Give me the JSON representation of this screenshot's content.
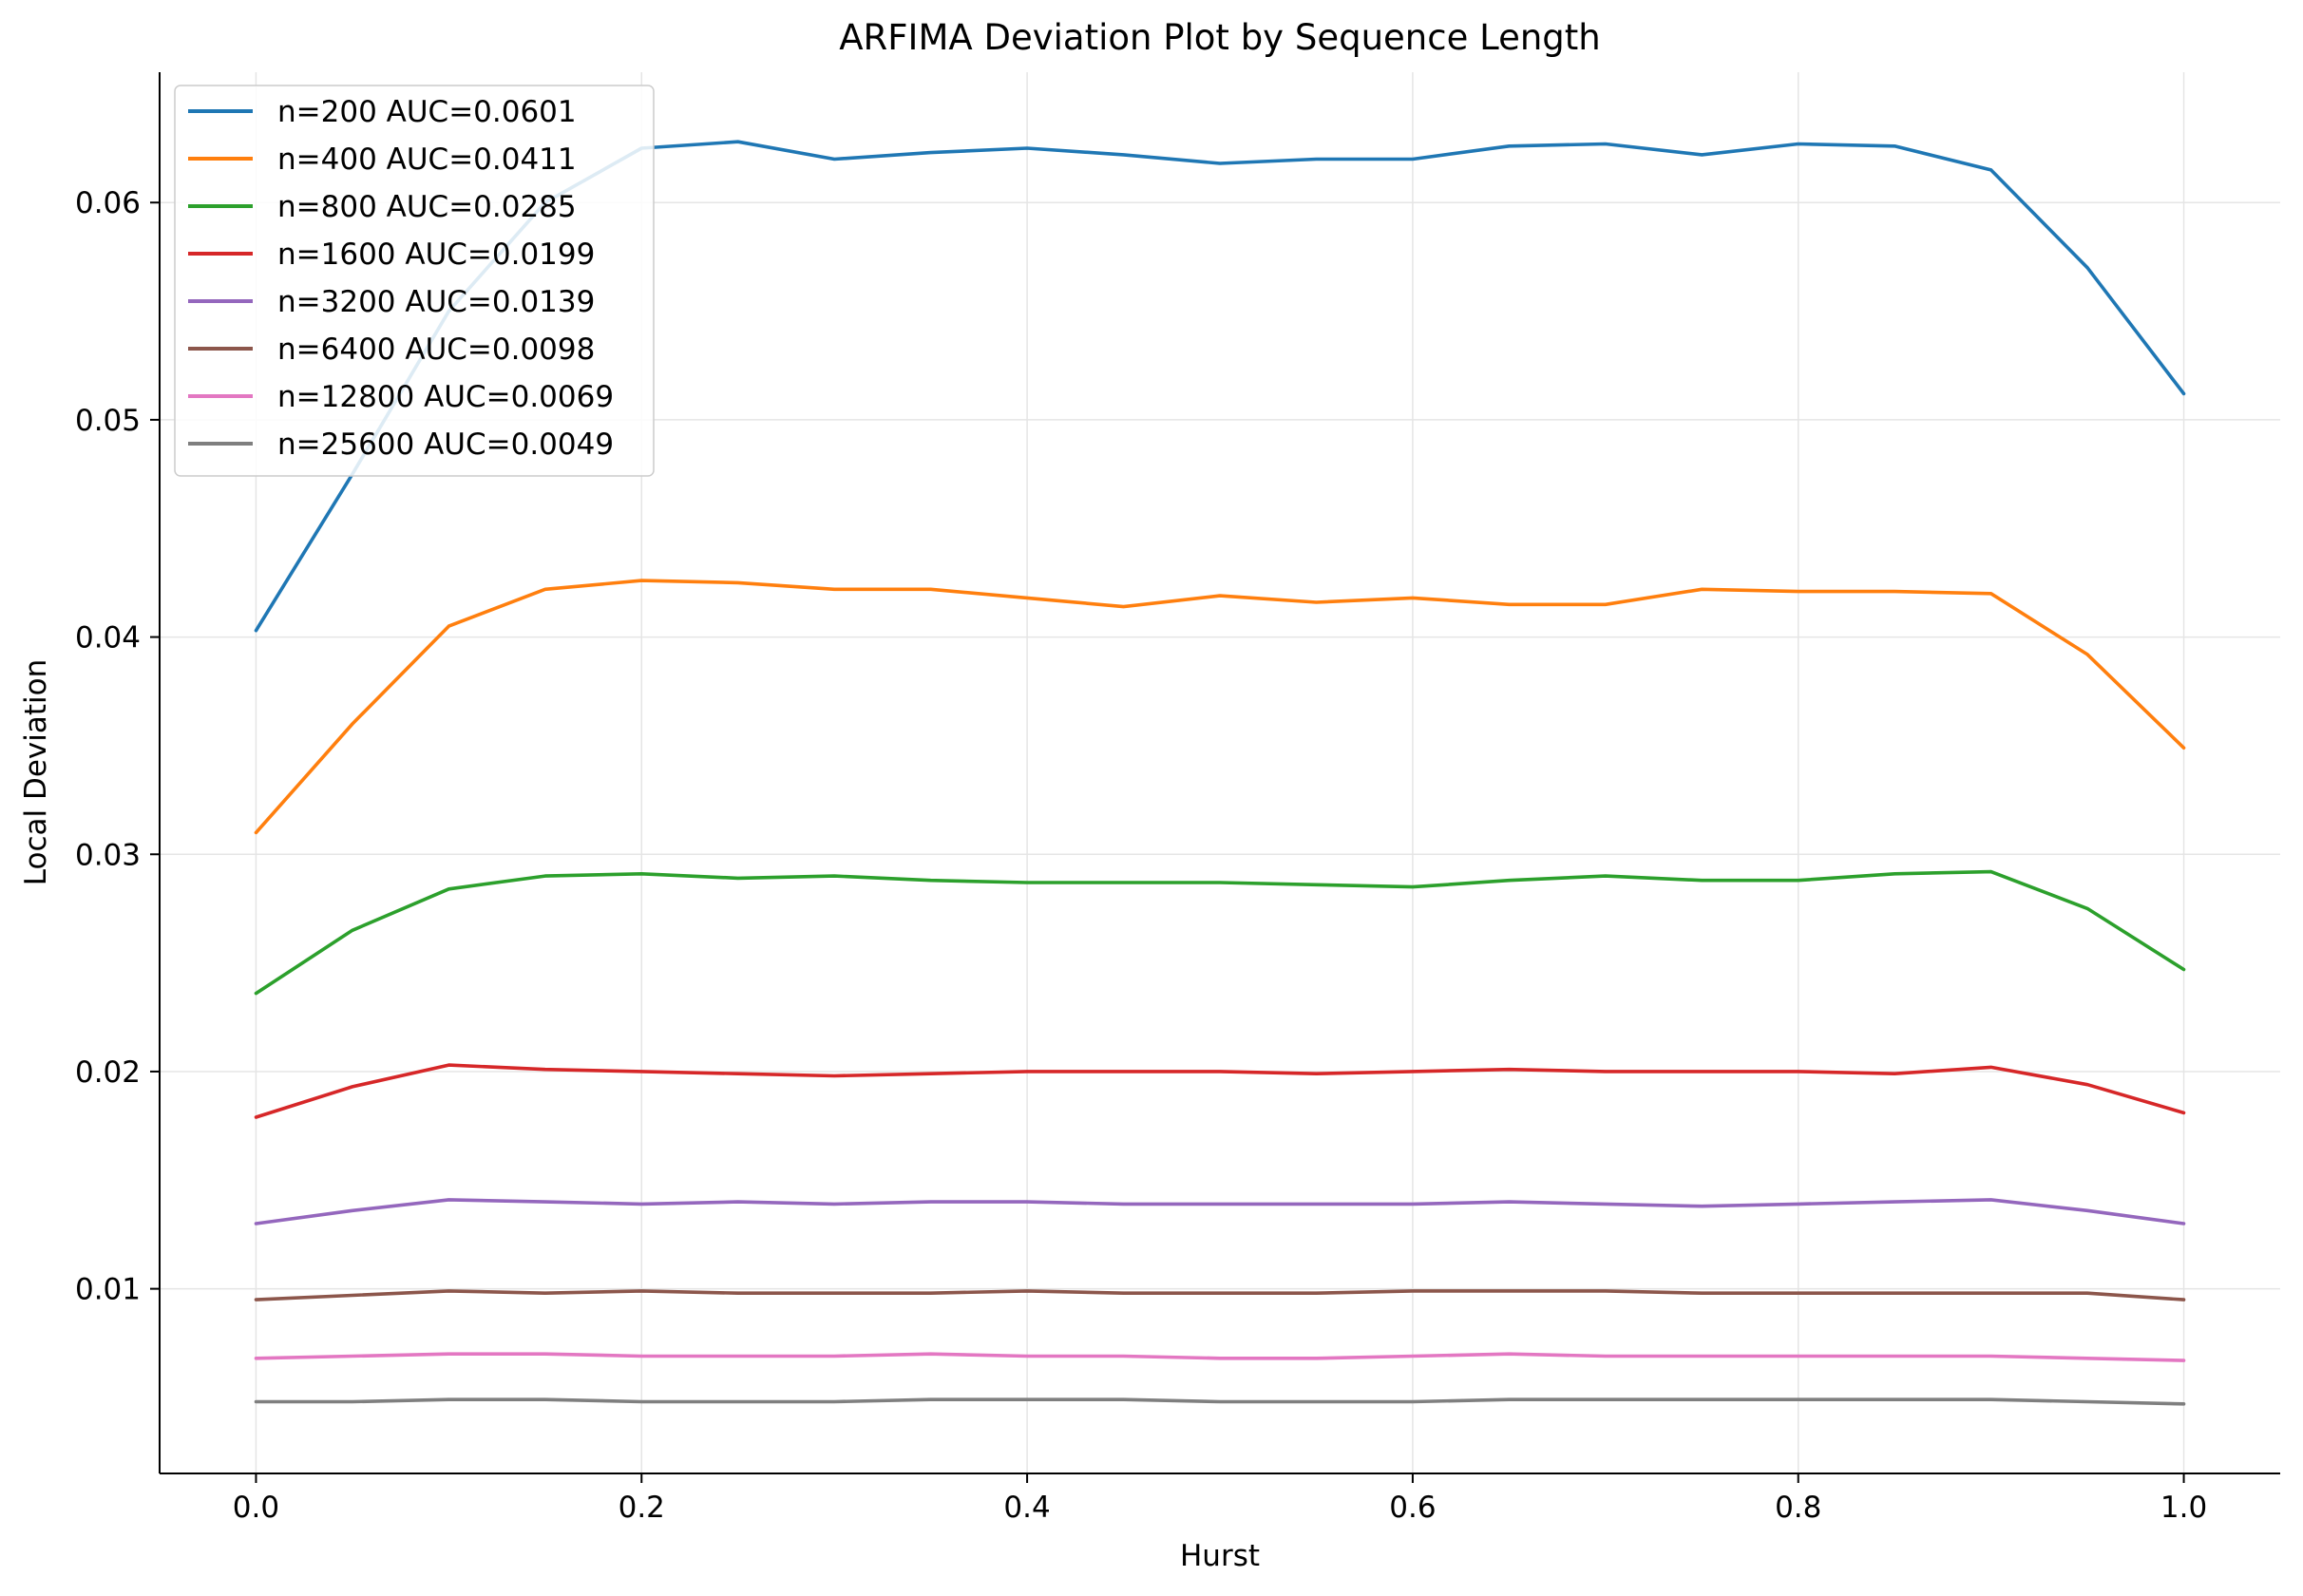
{
  "chart_data": {
    "type": "line",
    "title": "ARFIMA Deviation Plot by Sequence Length",
    "xlabel": "Hurst",
    "ylabel": "Local Deviation",
    "xlim": [
      -0.05,
      1.05
    ],
    "ylim": [
      0.0015,
      0.066
    ],
    "x_ticks": [
      0.0,
      0.2,
      0.4,
      0.6,
      0.8,
      1.0
    ],
    "x_tick_labels": [
      "0.0",
      "0.2",
      "0.4",
      "0.6",
      "0.8",
      "1.0"
    ],
    "y_ticks": [
      0.01,
      0.02,
      0.03,
      0.04,
      0.05,
      0.06
    ],
    "y_tick_labels": [
      "0.01",
      "0.02",
      "0.03",
      "0.04",
      "0.05",
      "0.06"
    ],
    "grid": true,
    "legend_position": "top-left",
    "x": [
      0.0,
      0.05,
      0.1,
      0.15,
      0.2,
      0.25,
      0.3,
      0.35,
      0.4,
      0.45,
      0.5,
      0.55,
      0.6,
      0.65,
      0.7,
      0.75,
      0.8,
      0.85,
      0.9,
      0.95,
      1.0
    ],
    "series": [
      {
        "name": "n=200 AUC=0.0601",
        "color": "#1f77b4",
        "values": [
          0.0403,
          0.0475,
          0.055,
          0.06,
          0.0625,
          0.0628,
          0.062,
          0.0623,
          0.0625,
          0.0622,
          0.0618,
          0.062,
          0.062,
          0.0626,
          0.0627,
          0.0622,
          0.0627,
          0.0626,
          0.0615,
          0.057,
          0.0512
        ]
      },
      {
        "name": "n=400 AUC=0.0411",
        "color": "#ff7f0e",
        "values": [
          0.031,
          0.036,
          0.0405,
          0.0422,
          0.0426,
          0.0425,
          0.0422,
          0.0422,
          0.0418,
          0.0414,
          0.0419,
          0.0416,
          0.0418,
          0.0415,
          0.0415,
          0.0422,
          0.0421,
          0.0421,
          0.042,
          0.0392,
          0.0349
        ]
      },
      {
        "name": "n=800 AUC=0.0285",
        "color": "#2ca02c",
        "values": [
          0.0236,
          0.0265,
          0.0284,
          0.029,
          0.0291,
          0.0289,
          0.029,
          0.0288,
          0.0287,
          0.0287,
          0.0287,
          0.0286,
          0.0285,
          0.0288,
          0.029,
          0.0288,
          0.0288,
          0.0291,
          0.0292,
          0.0275,
          0.0247
        ]
      },
      {
        "name": "n=1600 AUC=0.0199",
        "color": "#d62728",
        "values": [
          0.0179,
          0.0193,
          0.0203,
          0.0201,
          0.02,
          0.0199,
          0.0198,
          0.0199,
          0.02,
          0.02,
          0.02,
          0.0199,
          0.02,
          0.0201,
          0.02,
          0.02,
          0.02,
          0.0199,
          0.0202,
          0.0194,
          0.0181
        ]
      },
      {
        "name": "n=3200 AUC=0.0139",
        "color": "#9467bd",
        "values": [
          0.013,
          0.0136,
          0.0141,
          0.014,
          0.0139,
          0.014,
          0.0139,
          0.014,
          0.014,
          0.0139,
          0.0139,
          0.0139,
          0.0139,
          0.014,
          0.0139,
          0.0138,
          0.0139,
          0.014,
          0.0141,
          0.0136,
          0.013
        ]
      },
      {
        "name": "n=6400 AUC=0.0098",
        "color": "#8c564b",
        "values": [
          0.0095,
          0.0097,
          0.0099,
          0.0098,
          0.0099,
          0.0098,
          0.0098,
          0.0098,
          0.0099,
          0.0098,
          0.0098,
          0.0098,
          0.0099,
          0.0099,
          0.0099,
          0.0098,
          0.0098,
          0.0098,
          0.0098,
          0.0098,
          0.0095
        ]
      },
      {
        "name": "n=12800 AUC=0.0069",
        "color": "#e377c2",
        "values": [
          0.0068,
          0.0069,
          0.007,
          0.007,
          0.0069,
          0.0069,
          0.0069,
          0.007,
          0.0069,
          0.0069,
          0.0068,
          0.0068,
          0.0069,
          0.007,
          0.0069,
          0.0069,
          0.0069,
          0.0069,
          0.0069,
          0.0068,
          0.0067
        ]
      },
      {
        "name": "n=25600 AUC=0.0049",
        "color": "#7f7f7f",
        "values": [
          0.0048,
          0.0048,
          0.0049,
          0.0049,
          0.0048,
          0.0048,
          0.0048,
          0.0049,
          0.0049,
          0.0049,
          0.0048,
          0.0048,
          0.0048,
          0.0049,
          0.0049,
          0.0049,
          0.0049,
          0.0049,
          0.0049,
          0.0048,
          0.0047
        ]
      }
    ]
  }
}
